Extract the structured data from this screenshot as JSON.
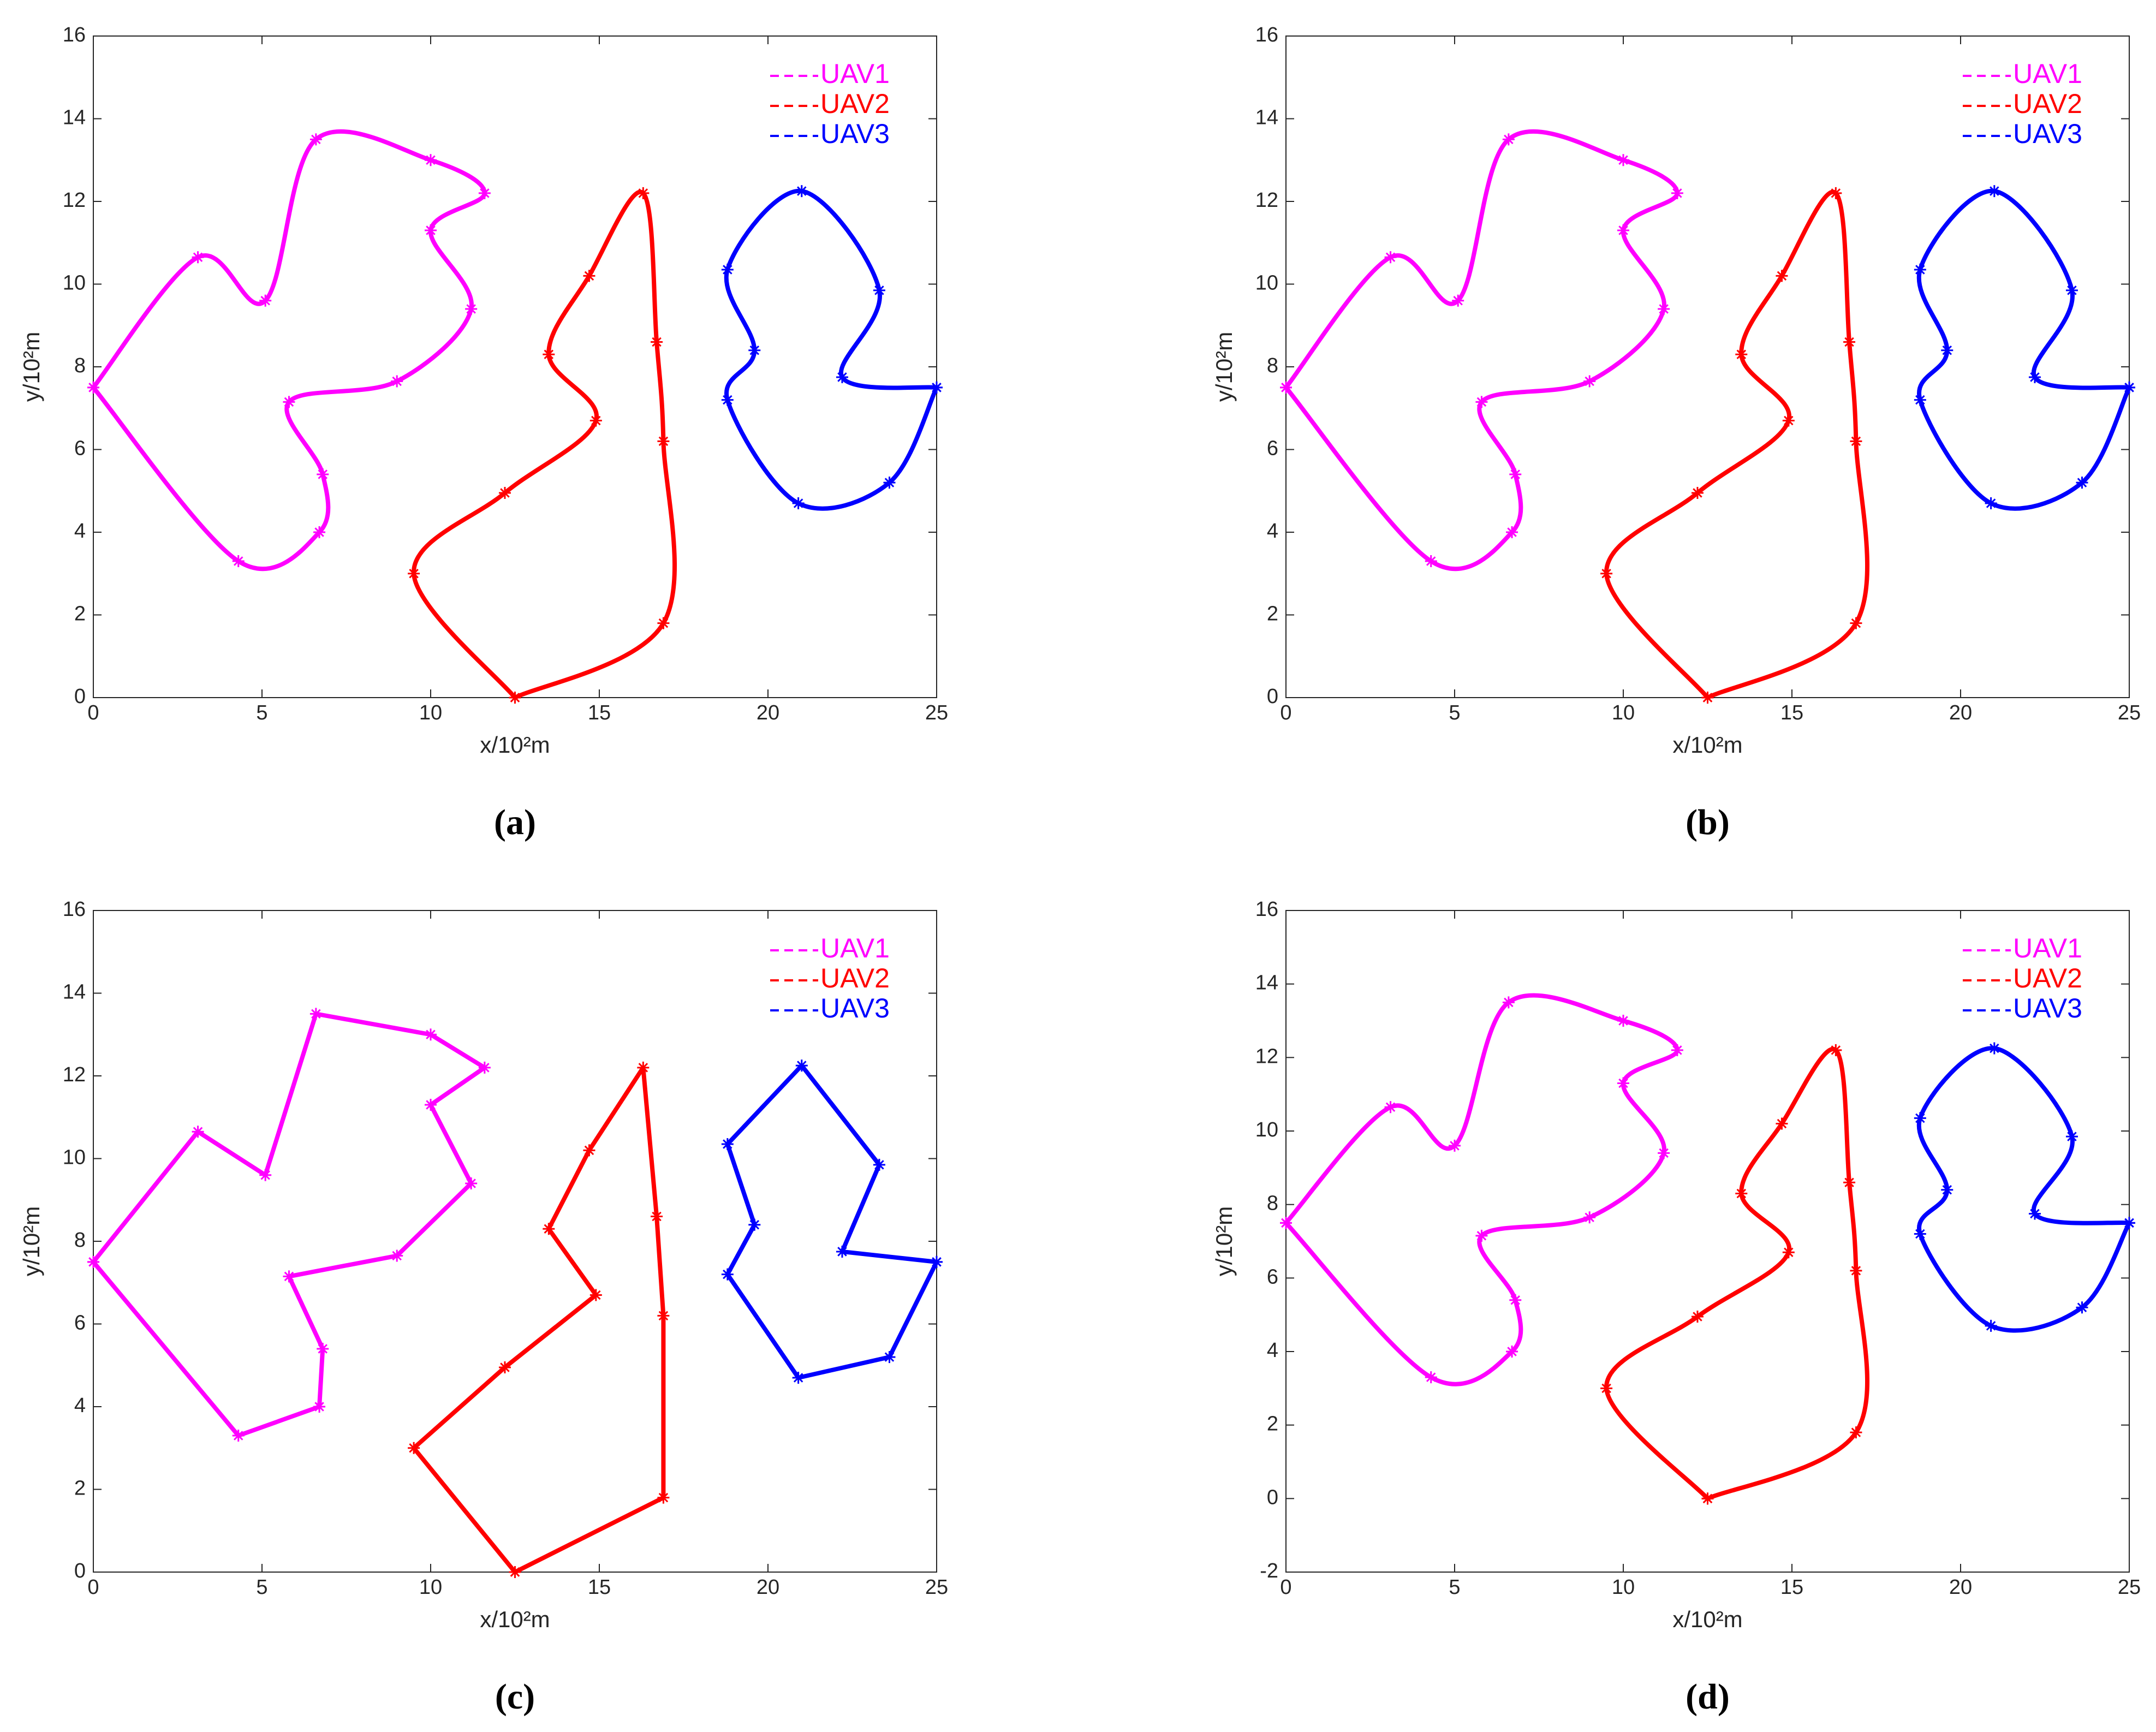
{
  "chart_data": [
    {
      "type": "line",
      "smooth": true,
      "caption": "(a)",
      "xlabel": "x/10²m",
      "ylabel": "y/10²m",
      "xlim": [
        0,
        25
      ],
      "ylim": [
        0,
        16
      ],
      "xticks": [
        0,
        5,
        10,
        15,
        20,
        25
      ],
      "yticks": [
        0,
        2,
        4,
        6,
        8,
        10,
        12,
        14,
        16
      ],
      "legend": "northeast",
      "marker": "*",
      "series": [
        {
          "name": "UAV1",
          "color": "#ff00ff",
          "x": [
            0,
            3.1,
            5.1,
            6.6,
            10,
            11.6,
            10,
            11.2,
            9,
            5.8,
            6.8,
            6.7,
            4.3,
            0
          ],
          "y": [
            7.5,
            10.65,
            9.6,
            13.5,
            13,
            12.2,
            11.3,
            9.4,
            7.65,
            7.15,
            5.4,
            4.0,
            3.3,
            7.5
          ]
        },
        {
          "name": "UAV2",
          "color": "#ff0000",
          "x": [
            12.5,
            9.5,
            12.2,
            14.9,
            13.5,
            14.7,
            16.3,
            16.7,
            16.9,
            16.9,
            12.5
          ],
          "y": [
            0,
            3.0,
            4.95,
            6.7,
            8.3,
            10.2,
            12.2,
            8.6,
            6.2,
            1.8,
            0
          ]
        },
        {
          "name": "UAV3",
          "color": "#0000ff",
          "x": [
            25,
            22.2,
            23.3,
            21,
            18.8,
            19.6,
            18.8,
            20.9,
            23.6,
            25
          ],
          "y": [
            7.5,
            7.75,
            9.85,
            12.25,
            10.35,
            8.4,
            7.2,
            4.7,
            5.2,
            7.5
          ]
        }
      ]
    },
    {
      "type": "line",
      "smooth": true,
      "caption": "(b)",
      "xlabel": "x/10²m",
      "ylabel": "y/10²m",
      "xlim": [
        0,
        25
      ],
      "ylim": [
        0,
        16
      ],
      "xticks": [
        0,
        5,
        10,
        15,
        20,
        25
      ],
      "yticks": [
        0,
        2,
        4,
        6,
        8,
        10,
        12,
        14,
        16
      ],
      "legend": "northeast",
      "marker": "*",
      "series": [
        {
          "name": "UAV1",
          "color": "#ff00ff",
          "x": [
            0,
            3.1,
            5.1,
            6.6,
            10,
            11.6,
            10,
            11.2,
            9,
            5.8,
            6.8,
            6.7,
            4.3,
            0
          ],
          "y": [
            7.5,
            10.65,
            9.6,
            13.5,
            13,
            12.2,
            11.3,
            9.4,
            7.65,
            7.15,
            5.4,
            4.0,
            3.3,
            7.5
          ]
        },
        {
          "name": "UAV2",
          "color": "#ff0000",
          "x": [
            12.5,
            9.5,
            12.2,
            14.9,
            13.5,
            14.7,
            16.3,
            16.7,
            16.9,
            16.9,
            12.5
          ],
          "y": [
            0,
            3.0,
            4.95,
            6.7,
            8.3,
            10.2,
            12.2,
            8.6,
            6.2,
            1.8,
            0
          ]
        },
        {
          "name": "UAV3",
          "color": "#0000ff",
          "x": [
            25,
            22.2,
            23.3,
            21,
            18.8,
            19.6,
            18.8,
            20.9,
            23.6,
            25
          ],
          "y": [
            7.5,
            7.75,
            9.85,
            12.25,
            10.35,
            8.4,
            7.2,
            4.7,
            5.2,
            7.5
          ]
        }
      ]
    },
    {
      "type": "line",
      "smooth": false,
      "caption": "(c)",
      "xlabel": "x/10²m",
      "ylabel": "y/10²m",
      "xlim": [
        0,
        25
      ],
      "ylim": [
        0,
        16
      ],
      "xticks": [
        0,
        5,
        10,
        15,
        20,
        25
      ],
      "yticks": [
        0,
        2,
        4,
        6,
        8,
        10,
        12,
        14,
        16
      ],
      "legend": "northeast",
      "marker": "*",
      "series": [
        {
          "name": "UAV1",
          "color": "#ff00ff",
          "x": [
            0,
            3.1,
            5.1,
            6.6,
            10,
            11.6,
            10,
            11.2,
            9,
            5.8,
            6.8,
            6.7,
            4.3,
            0
          ],
          "y": [
            7.5,
            10.65,
            9.6,
            13.5,
            13,
            12.2,
            11.3,
            9.4,
            7.65,
            7.15,
            5.4,
            4.0,
            3.3,
            7.5
          ]
        },
        {
          "name": "UAV2",
          "color": "#ff0000",
          "x": [
            12.5,
            9.5,
            12.2,
            14.9,
            13.5,
            14.7,
            16.3,
            16.7,
            16.9,
            16.9,
            12.5
          ],
          "y": [
            0,
            3.0,
            4.95,
            6.7,
            8.3,
            10.2,
            12.2,
            8.6,
            6.2,
            1.8,
            0
          ]
        },
        {
          "name": "UAV3",
          "color": "#0000ff",
          "x": [
            25,
            22.2,
            23.3,
            21,
            18.8,
            19.6,
            18.8,
            20.9,
            23.6,
            25
          ],
          "y": [
            7.5,
            7.75,
            9.85,
            12.25,
            10.35,
            8.4,
            7.2,
            4.7,
            5.2,
            7.5
          ]
        }
      ]
    },
    {
      "type": "line",
      "smooth": true,
      "caption": "(d)",
      "xlabel": "x/10²m",
      "ylabel": "y/10²m",
      "xlim": [
        0,
        25
      ],
      "ylim": [
        -2,
        16
      ],
      "xticks": [
        0,
        5,
        10,
        15,
        20,
        25
      ],
      "yticks": [
        -2,
        0,
        2,
        4,
        6,
        8,
        10,
        12,
        14,
        16
      ],
      "legend": "northeast",
      "marker": "*",
      "series": [
        {
          "name": "UAV1",
          "color": "#ff00ff",
          "x": [
            0,
            3.1,
            5.0,
            6.6,
            10,
            11.6,
            10,
            11.2,
            9,
            5.8,
            6.8,
            6.7,
            4.3,
            0
          ],
          "y": [
            7.5,
            10.65,
            9.6,
            13.5,
            13,
            12.2,
            11.3,
            9.4,
            7.65,
            7.15,
            5.4,
            4.0,
            3.3,
            7.5
          ]
        },
        {
          "name": "UAV2",
          "color": "#ff0000",
          "x": [
            12.5,
            9.5,
            12.2,
            14.9,
            13.5,
            14.7,
            16.3,
            16.7,
            16.9,
            16.9,
            12.5
          ],
          "y": [
            0,
            3.0,
            4.95,
            6.7,
            8.3,
            10.2,
            12.2,
            8.6,
            6.2,
            1.8,
            0
          ]
        },
        {
          "name": "UAV3",
          "color": "#0000ff",
          "x": [
            25,
            22.2,
            23.3,
            21,
            18.8,
            19.6,
            18.8,
            20.9,
            23.6,
            25
          ],
          "y": [
            7.5,
            7.75,
            9.85,
            12.25,
            10.35,
            8.4,
            7.2,
            4.7,
            5.2,
            7.5
          ]
        }
      ]
    }
  ]
}
